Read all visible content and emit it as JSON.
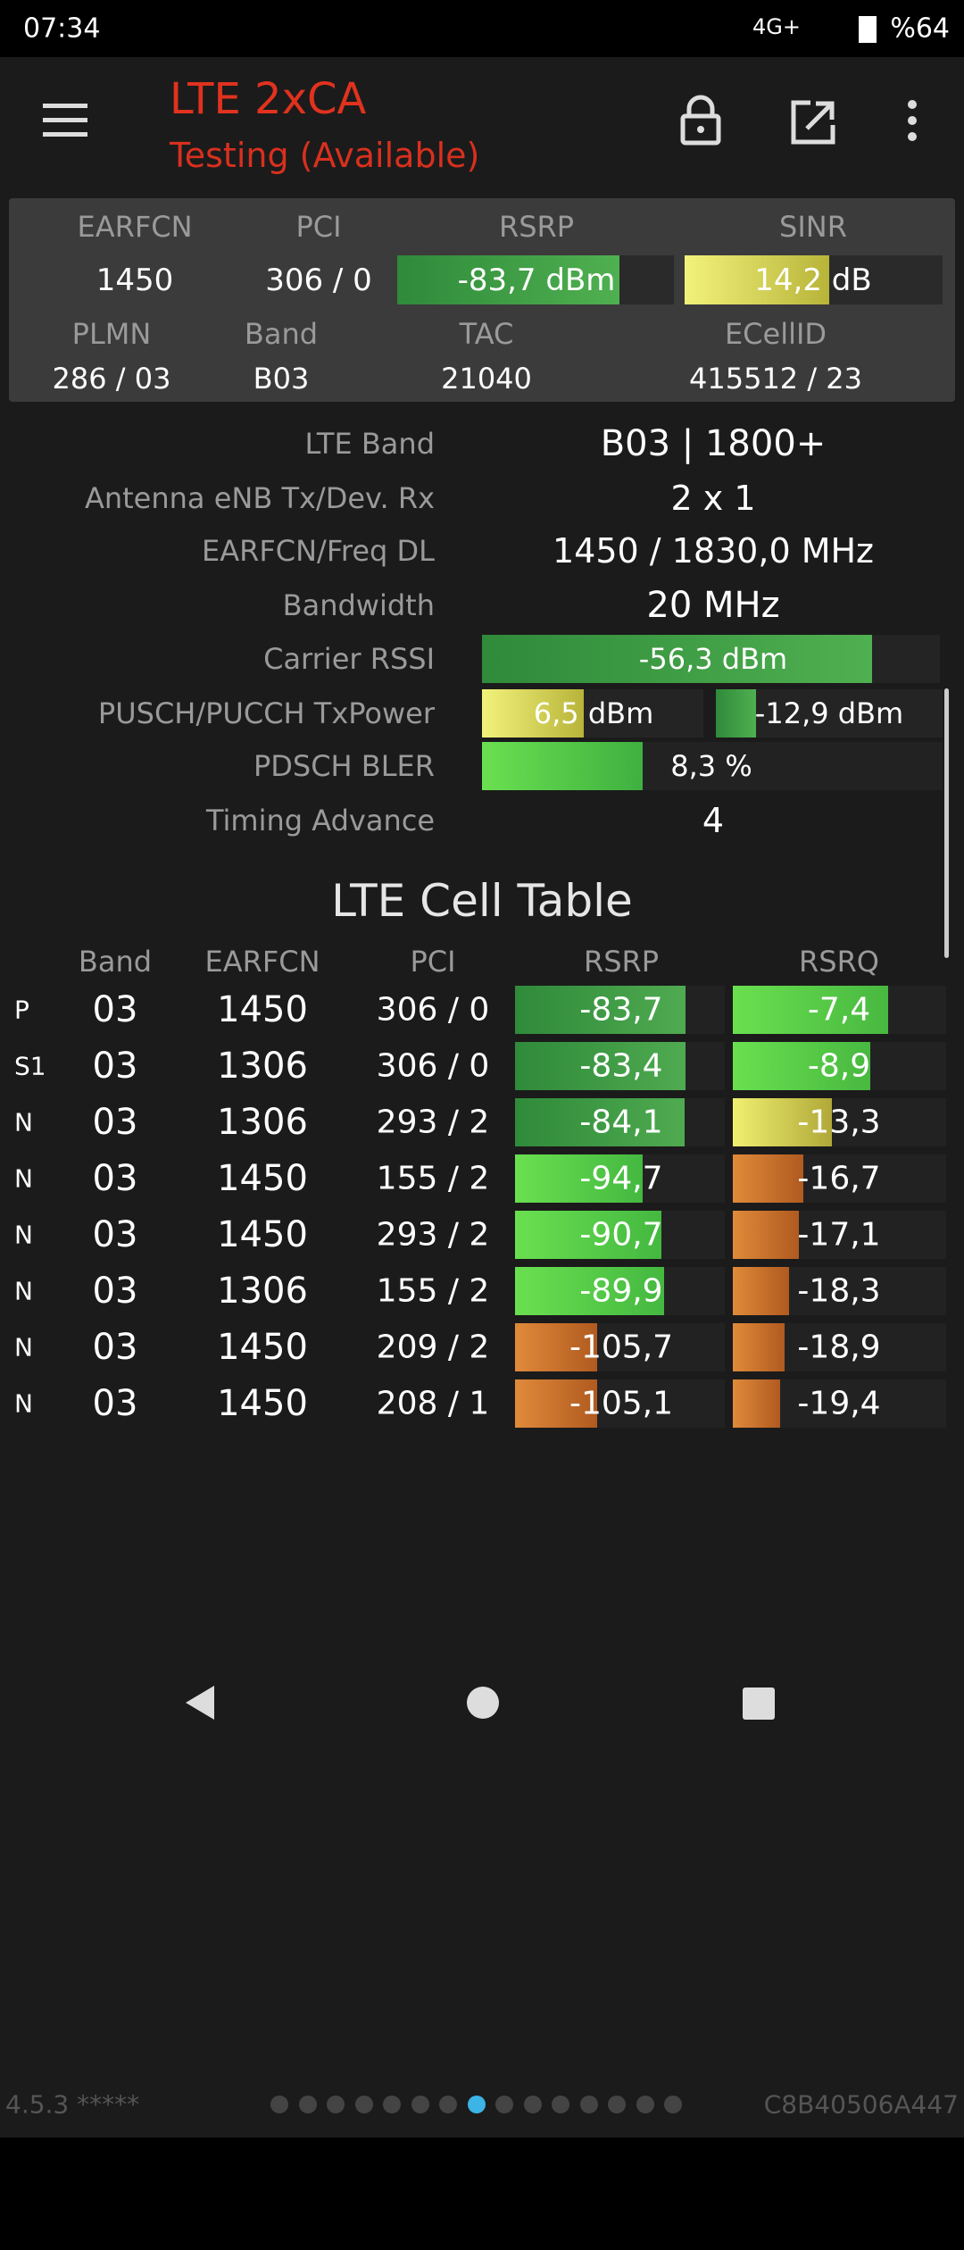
{
  "status_bar": {
    "time": "07:34",
    "network": "4G+",
    "battery": "%64"
  },
  "app_bar": {
    "title": "LTE 2xCA",
    "subtitle": "Testing (Available)"
  },
  "summary": {
    "headers_1": [
      "EARFCN",
      "PCI",
      "RSRP",
      "SINR"
    ],
    "values_1": [
      "1450",
      "306 / 0",
      "-83,7 dBm",
      "14,2 dB"
    ],
    "headers_2": [
      "PLMN",
      "Band",
      "TAC",
      "ECellID"
    ],
    "values_2": [
      "286 / 03",
      "B03",
      "21040",
      "415512 / 23"
    ]
  },
  "details": {
    "rows": [
      {
        "label": "LTE Band",
        "value": "B03 | 1800+"
      },
      {
        "label": "Antenna eNB Tx/Dev. Rx",
        "value": "2 x 1"
      },
      {
        "label": "EARFCN/Freq DL",
        "value": "1450 / 1830,0 MHz"
      },
      {
        "label": "Bandwidth",
        "value": "20 MHz"
      },
      {
        "label": "Carrier RSSI",
        "value": "-56,3 dBm"
      },
      {
        "label": "PUSCH/PUCCH TxPower",
        "value": "6,5 dBm",
        "value2": "-12,9 dBm"
      },
      {
        "label": "PDSCH BLER",
        "value": "8,3 %"
      },
      {
        "label": "Timing Advance",
        "value": "4"
      }
    ]
  },
  "cell_table": {
    "title": "LTE Cell Table",
    "headers": [
      "Band",
      "EARFCN",
      "PCI",
      "RSRP",
      "RSRQ"
    ],
    "rows": [
      [
        "P",
        "03",
        "1450",
        "306 / 0",
        "-83,7",
        "-7,4"
      ],
      [
        "S1",
        "03",
        "1306",
        "306 / 0",
        "-83,4",
        "-8,9"
      ],
      [
        "N",
        "03",
        "1306",
        "293 / 2",
        "-84,1",
        "-13,3"
      ],
      [
        "N",
        "03",
        "1450",
        "155 / 2",
        "-94,7",
        "-16,7"
      ],
      [
        "N",
        "03",
        "1450",
        "293 / 2",
        "-90,7",
        "-17,1"
      ],
      [
        "N",
        "03",
        "1306",
        "155 / 2",
        "-89,9",
        "-18,3"
      ],
      [
        "N",
        "03",
        "1450",
        "209 / 2",
        "-105,7",
        "-18,9"
      ],
      [
        "N",
        "03",
        "1450",
        "208 / 1",
        "-105,1",
        "-19,4"
      ]
    ]
  },
  "footer": {
    "version": "4.5.3 *****",
    "device_id": "C8B40506A447"
  }
}
